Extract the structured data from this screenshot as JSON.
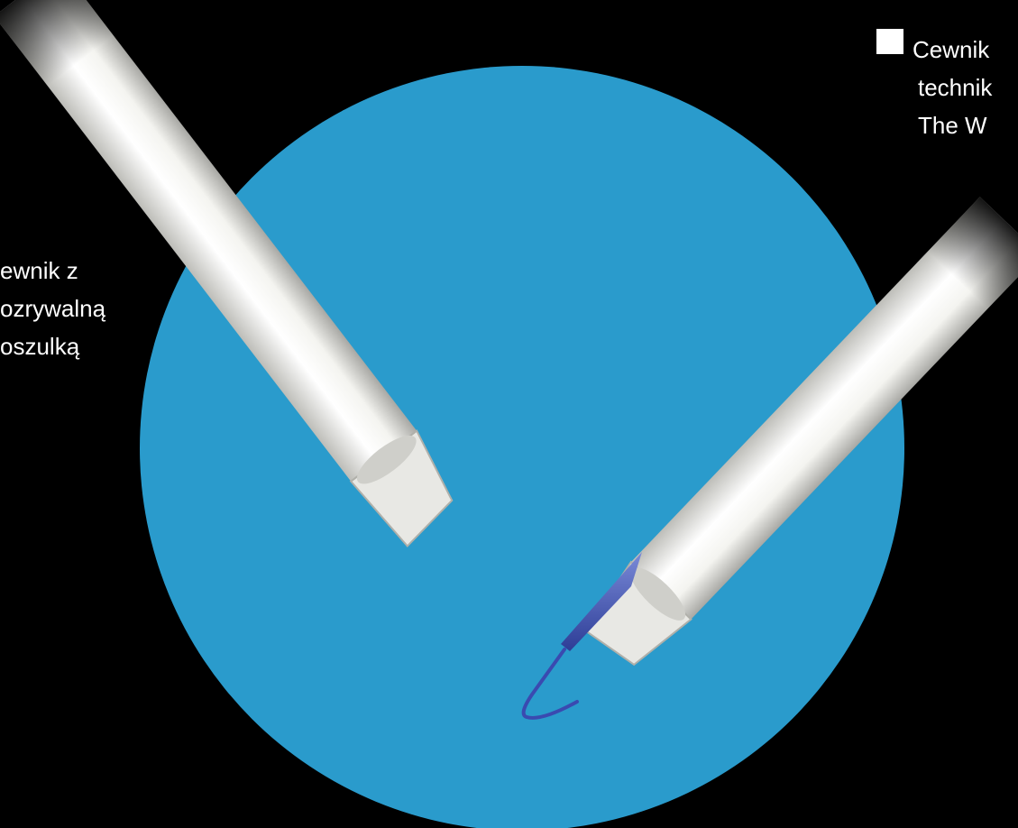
{
  "left_label": {
    "lines": [
      "ewnik z",
      "ozrywalną",
      "oszulką"
    ]
  },
  "right_label": {
    "lines": [
      "Cewnik",
      "technik",
      "The W"
    ]
  }
}
